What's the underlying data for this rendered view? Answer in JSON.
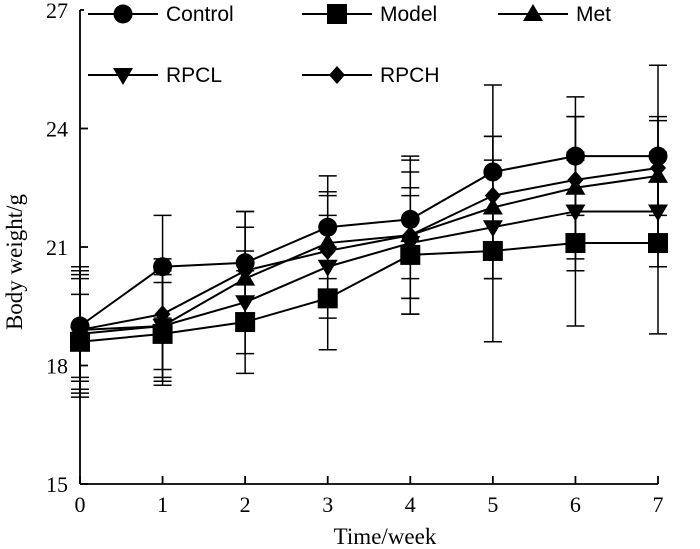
{
  "chart_data": {
    "type": "line",
    "title": "",
    "xlabel": "Time/week",
    "ylabel": "Body weight/g",
    "x": [
      0,
      1,
      2,
      3,
      4,
      5,
      6,
      7
    ],
    "xlim": [
      0,
      7
    ],
    "ylim": [
      15,
      27
    ],
    "yticks": [
      15,
      18,
      21,
      24,
      27
    ],
    "grid": false,
    "legend_position": "top",
    "series": [
      {
        "name": "Control",
        "marker": "circle",
        "values": [
          19.0,
          20.5,
          20.6,
          21.5,
          21.7,
          22.9,
          23.3,
          23.3
        ],
        "errors": [
          1.3,
          1.3,
          1.3,
          1.3,
          1.5,
          2.2,
          1.5,
          2.3
        ]
      },
      {
        "name": "Model",
        "marker": "square",
        "values": [
          18.6,
          18.8,
          19.1,
          19.7,
          20.8,
          20.9,
          21.1,
          21.1
        ],
        "errors": [
          1.2,
          1.3,
          1.3,
          1.3,
          1.5,
          2.3,
          2.1,
          2.3
        ]
      },
      {
        "name": "Met",
        "marker": "triangle-up",
        "values": [
          18.9,
          19.0,
          20.2,
          21.1,
          21.3,
          22.0,
          22.5,
          22.8
        ],
        "errors": [
          1.3,
          1.3,
          1.3,
          1.3,
          2.0,
          1.8,
          1.8,
          1.5
        ]
      },
      {
        "name": "RPCL",
        "marker": "triangle-down",
        "values": [
          18.8,
          19.0,
          19.6,
          20.5,
          21.1,
          21.5,
          21.9,
          21.9
        ],
        "errors": [
          1.6,
          1.4,
          1.3,
          1.3,
          1.4,
          1.3,
          1.5,
          1.4
        ]
      },
      {
        "name": "RPCH",
        "marker": "diamond",
        "values": [
          18.9,
          19.3,
          20.4,
          20.9,
          21.3,
          22.3,
          22.7,
          23.0
        ],
        "errors": [
          1.6,
          1.4,
          1.5,
          1.4,
          1.6,
          1.5,
          1.6,
          1.2
        ]
      }
    ]
  }
}
